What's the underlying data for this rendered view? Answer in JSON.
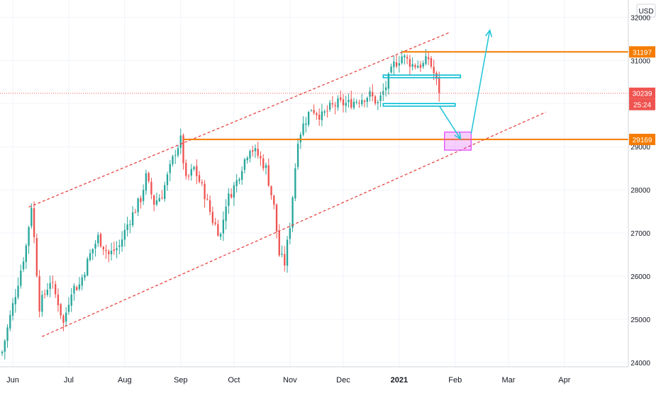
{
  "chart_data": {
    "type": "candlestick",
    "currency": "USD",
    "y_ticks": [
      24000,
      25000,
      26000,
      27000,
      28000,
      29000,
      30000,
      31000,
      32000
    ],
    "ylim": [
      23900,
      32400
    ],
    "x_labels": [
      {
        "label": "Jun",
        "bar": 4
      },
      {
        "label": "Jul",
        "bar": 25
      },
      {
        "label": "Aug",
        "bar": 46
      },
      {
        "label": "Sep",
        "bar": 67
      },
      {
        "label": "Oct",
        "bar": 87
      },
      {
        "label": "Nov",
        "bar": 108
      },
      {
        "label": "Dec",
        "bar": 128
      },
      {
        "label": "2021",
        "bar": 149,
        "bold": true
      },
      {
        "label": "Feb",
        "bar": 170
      },
      {
        "label": "Mar",
        "bar": 190
      },
      {
        "label": "Apr",
        "bar": 211
      }
    ],
    "x_range_bars": [
      0,
      235
    ],
    "price_labels": [
      {
        "value": "31197",
        "price": 31197,
        "color": "#f57c00"
      },
      {
        "value": "30239",
        "price": 30239,
        "color": "#ef5350"
      },
      {
        "value": "25:24",
        "price": 29980,
        "color": "#ef5350"
      },
      {
        "value": "29169",
        "price": 29169,
        "color": "#f57c00"
      }
    ],
    "horizontal_levels": [
      {
        "price": 31197,
        "from_bar": 150,
        "color": "#f57c00"
      },
      {
        "price": 29169,
        "from_bar": 68,
        "color": "#f57c00"
      }
    ],
    "last_price_line": 30239,
    "channel_lines": [
      {
        "from": [
          10,
          27600
        ],
        "to": [
          168,
          31650
        ]
      },
      {
        "from": [
          15,
          24600
        ],
        "to": [
          204,
          29800
        ]
      }
    ],
    "boxes": [
      {
        "from": [
          143,
          30660
        ],
        "to": [
          172,
          30600
        ],
        "color": "#00bcd4"
      },
      {
        "from": [
          143,
          30000
        ],
        "to": [
          170,
          29940
        ],
        "color": "#00bcd4"
      },
      {
        "from": [
          166,
          29340
        ],
        "to": [
          176,
          28920
        ],
        "color": "#e040fb"
      }
    ],
    "arrows": [
      {
        "points": [
          [
            164,
            29950
          ],
          [
            172,
            29180
          ]
        ],
        "color": "#26c6da"
      },
      {
        "points": [
          [
            176,
            29300
          ],
          [
            183,
            31700
          ]
        ],
        "color": "#26c6da"
      }
    ],
    "waypoints": [
      [
        0,
        24250
      ],
      [
        5,
        25600
      ],
      [
        9,
        26700
      ],
      [
        11,
        27650
      ],
      [
        13,
        26100
      ],
      [
        14,
        25300
      ],
      [
        18,
        25900
      ],
      [
        21,
        25400
      ],
      [
        23,
        24900
      ],
      [
        26,
        25700
      ],
      [
        29,
        25800
      ],
      [
        33,
        26500
      ],
      [
        36,
        26900
      ],
      [
        40,
        26500
      ],
      [
        44,
        26700
      ],
      [
        47,
        27200
      ],
      [
        52,
        27800
      ],
      [
        54,
        28300
      ],
      [
        57,
        27700
      ],
      [
        60,
        27900
      ],
      [
        63,
        28500
      ],
      [
        65,
        28900
      ],
      [
        67,
        29150
      ],
      [
        69,
        28200
      ],
      [
        72,
        28500
      ],
      [
        76,
        27900
      ],
      [
        79,
        27300
      ],
      [
        82,
        26950
      ],
      [
        84,
        27700
      ],
      [
        88,
        28200
      ],
      [
        90,
        28550
      ],
      [
        93,
        29000
      ],
      [
        96,
        28800
      ],
      [
        99,
        28500
      ],
      [
        102,
        27600
      ],
      [
        104,
        26500
      ],
      [
        106,
        26300
      ],
      [
        108,
        27200
      ],
      [
        111,
        29200
      ],
      [
        113,
        29500
      ],
      [
        116,
        29900
      ],
      [
        120,
        29700
      ],
      [
        123,
        29900
      ],
      [
        126,
        30000
      ],
      [
        130,
        30000
      ],
      [
        134,
        30100
      ],
      [
        138,
        30200
      ],
      [
        141,
        30000
      ],
      [
        144,
        30400
      ],
      [
        147,
        30900
      ],
      [
        150,
        31100
      ],
      [
        154,
        30900
      ],
      [
        158,
        30900
      ],
      [
        160,
        31050
      ],
      [
        162,
        30700
      ],
      [
        164,
        30300
      ]
    ]
  }
}
